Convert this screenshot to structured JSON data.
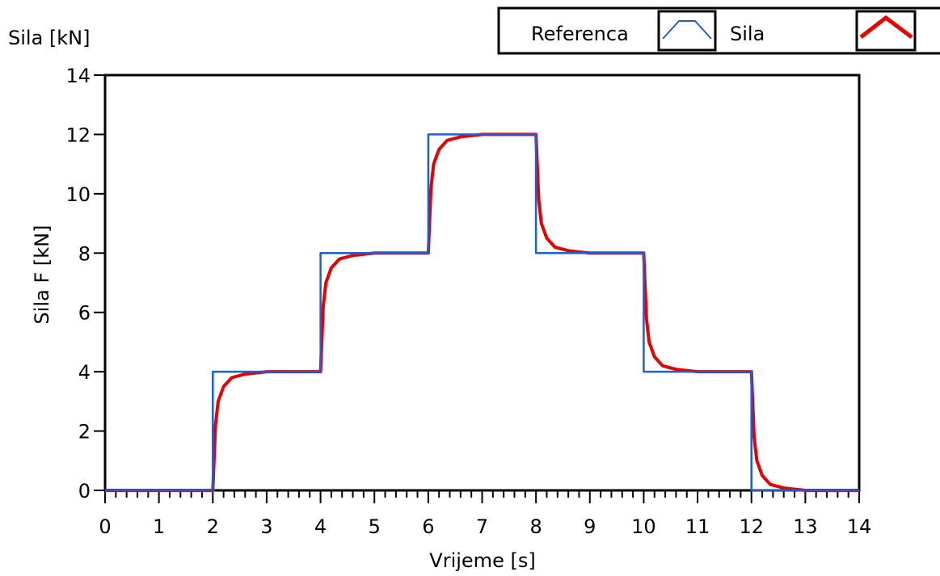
{
  "chart_data": {
    "type": "line",
    "corner_label": "Sila [kN]",
    "xlabel": "Vrijeme [s]",
    "ylabel": "Sila F [kN]",
    "xlim": [
      0,
      14
    ],
    "ylim": [
      0,
      14
    ],
    "x_ticks": [
      "0",
      "1",
      "2",
      "3",
      "4",
      "5",
      "6",
      "7",
      "8",
      "9",
      "10",
      "11",
      "12",
      "13",
      "14"
    ],
    "y_ticks": [
      "0",
      "2",
      "4",
      "6",
      "8",
      "10",
      "12",
      "14"
    ],
    "grid": false,
    "legend_position": "top-right",
    "series": [
      {
        "name": "Referenca",
        "color": "#1a5fd6",
        "x": [
          0,
          2,
          2,
          4,
          4,
          6,
          6,
          8,
          8,
          10,
          10,
          12,
          12,
          14
        ],
        "y": [
          0,
          0,
          4,
          4,
          8,
          8,
          12,
          12,
          8,
          8,
          4,
          4,
          0,
          0
        ]
      },
      {
        "name": "Sila",
        "color": "#e60000",
        "x": [
          0,
          2,
          2.05,
          2.1,
          2.2,
          2.35,
          2.6,
          3.0,
          4.0,
          4.05,
          4.1,
          4.2,
          4.35,
          4.6,
          5.0,
          6.0,
          6.05,
          6.1,
          6.2,
          6.35,
          6.6,
          7.0,
          8.0,
          8.05,
          8.1,
          8.2,
          8.35,
          8.6,
          9.0,
          10.0,
          10.05,
          10.1,
          10.2,
          10.35,
          10.6,
          11.0,
          12.0,
          12.05,
          12.1,
          12.2,
          12.35,
          12.6,
          13.0,
          14.0
        ],
        "y": [
          0,
          0,
          2.2,
          3.0,
          3.5,
          3.8,
          3.92,
          4.0,
          4.0,
          6.2,
          7.0,
          7.5,
          7.8,
          7.92,
          8.0,
          8.0,
          10.2,
          11.0,
          11.5,
          11.8,
          11.92,
          12.0,
          12.0,
          9.8,
          9.0,
          8.5,
          8.2,
          8.08,
          8.0,
          8.0,
          5.8,
          5.0,
          4.5,
          4.2,
          4.08,
          4.0,
          4.0,
          1.8,
          1.0,
          0.5,
          0.2,
          0.08,
          0.0,
          0.0
        ]
      }
    ]
  }
}
